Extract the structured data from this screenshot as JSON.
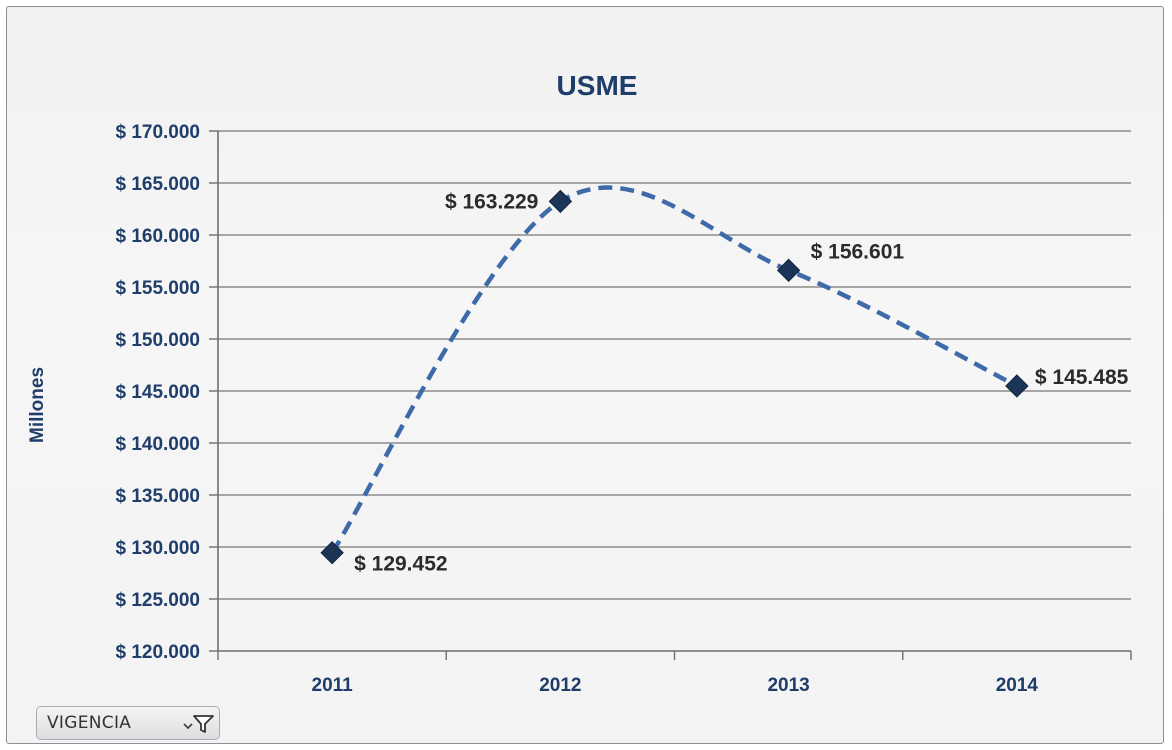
{
  "chart_data": {
    "type": "line",
    "title": "USME",
    "ylabel": "Millones",
    "xlabel": "",
    "categories": [
      "2011",
      "2012",
      "2013",
      "2014"
    ],
    "series": [
      {
        "values": [
          129452,
          163229,
          156601,
          145485
        ],
        "data_labels": [
          "$ 129.452",
          "$ 163.229",
          "$ 156.601",
          "$ 145.485"
        ],
        "line_style": "dashed-smooth",
        "marker": "diamond",
        "color": "#3d6aa8",
        "marker_color": "#1c3557"
      }
    ],
    "ylim": [
      120000,
      170000
    ],
    "y_ticks": [
      120000,
      125000,
      130000,
      135000,
      140000,
      145000,
      150000,
      155000,
      160000,
      165000,
      170000
    ],
    "y_tick_labels": [
      "$ 120.000",
      "$ 125.000",
      "$ 130.000",
      "$ 135.000",
      "$ 140.000",
      "$ 145.000",
      "$ 150.000",
      "$ 155.000",
      "$ 160.000",
      "$ 165.000",
      "$ 170.000"
    ],
    "grid": true,
    "legend": "none",
    "title_color": "#1f3d6b"
  },
  "filter": {
    "label": "VIGENCIA",
    "icon": "filter-dropdown-icon"
  }
}
